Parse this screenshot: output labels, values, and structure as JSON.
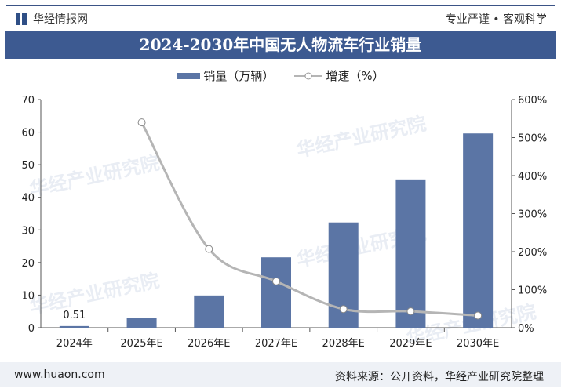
{
  "header": {
    "brand": "华经情报网",
    "slogan": "专业严谨 • 客观科学",
    "title": "2024-2030年中国无人物流车行业销量"
  },
  "footer": {
    "url": "www.huaon.com",
    "source": "资料来源：公开资料，华经产业研究院整理"
  },
  "watermark": "华经产业研究院",
  "chart_data": {
    "type": "bar+line",
    "title": "2024-2030年中国无人物流车行业销量",
    "categories": [
      "2024年",
      "2025年E",
      "2026年E",
      "2027年E",
      "2028年E",
      "2029年E",
      "2030年E"
    ],
    "series": [
      {
        "name": "销量（万辆）",
        "type": "bar",
        "axis": "left",
        "color": "#5b75a5",
        "values": [
          0.51,
          3.1,
          9.9,
          21.6,
          32.3,
          45.5,
          59.6
        ]
      },
      {
        "name": "增速（%）",
        "type": "line",
        "axis": "right",
        "color": "#b5b5b5",
        "values": [
          null,
          540,
          207,
          122,
          49,
          43,
          32
        ]
      }
    ],
    "data_labels": {
      "2024年": "0.51"
    },
    "left_axis": {
      "range": [
        0,
        70
      ],
      "ticks": [
        "0",
        "10",
        "20",
        "30",
        "40",
        "50",
        "60",
        "70"
      ]
    },
    "right_axis": {
      "range": [
        0,
        600
      ],
      "ticks": [
        "0%",
        "100%",
        "200%",
        "300%",
        "400%",
        "500%",
        "600%"
      ]
    },
    "grid": false,
    "legend": "top"
  }
}
